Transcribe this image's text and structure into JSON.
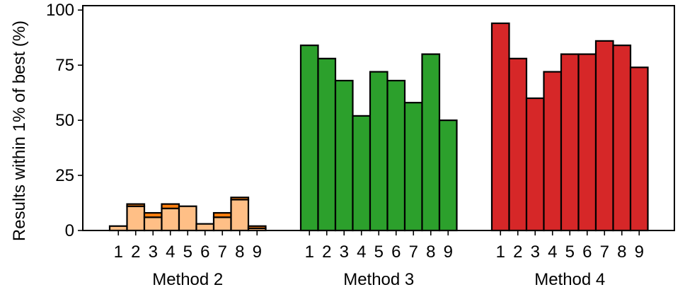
{
  "chart_data": {
    "type": "bar",
    "ylabel": "Results within 1% of best (%)",
    "ylim": [
      0,
      102
    ],
    "yticks": [
      0,
      25,
      50,
      75,
      100
    ],
    "categories": [
      "1",
      "2",
      "3",
      "4",
      "5",
      "6",
      "7",
      "8",
      "9"
    ],
    "groups": [
      {
        "name": "Method 2",
        "color": "#ffbf86",
        "segments": [
          {
            "color": "#ffbf86",
            "values": [
              2,
              11,
              6,
              10,
              11,
              3,
              6,
              14,
              1
            ]
          },
          {
            "color": "#ff7f0e",
            "values": [
              0,
              1,
              2,
              2,
              0,
              0,
              2,
              1,
              1
            ]
          }
        ]
      },
      {
        "name": "Method 3",
        "color": "#2ca02c",
        "segments": [
          {
            "color": "#2ca02c",
            "values": [
              84,
              78,
              68,
              52,
              72,
              68,
              58,
              80,
              50
            ]
          }
        ]
      },
      {
        "name": "Method 4",
        "color": "#d62728",
        "segments": [
          {
            "color": "#d62728",
            "values": [
              94,
              78,
              60,
              72,
              80,
              80,
              86,
              84,
              74
            ]
          }
        ]
      }
    ],
    "grid": false,
    "legend": "none"
  }
}
